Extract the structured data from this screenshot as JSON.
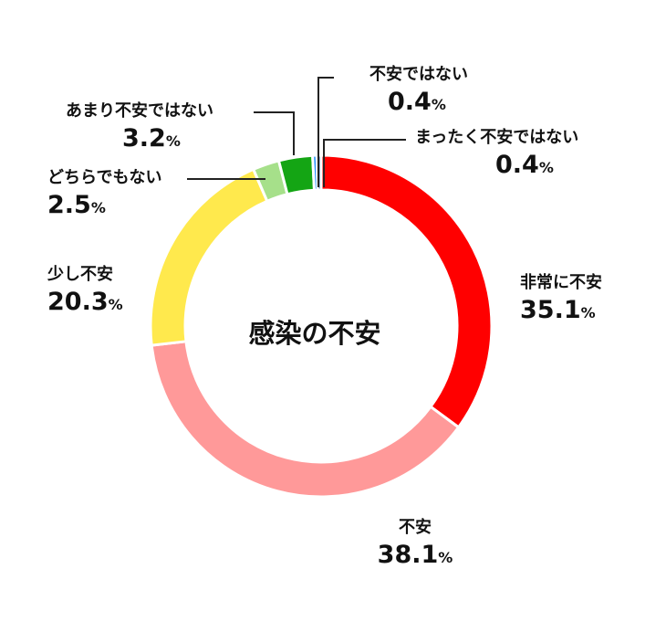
{
  "chart_data": {
    "type": "pie",
    "title": "感染の不安",
    "unit": "%",
    "categories": [
      "非常に不安",
      "不安",
      "少し不安",
      "どちらでもない",
      "あまり不安ではない",
      "不安ではない",
      "まったく不安ではない"
    ],
    "values": [
      35.1,
      38.1,
      20.3,
      2.5,
      3.2,
      0.4,
      0.4
    ],
    "value_labels": [
      "35.1",
      "38.1",
      "20.3",
      "2.5",
      "3.2",
      "0.4",
      "0.4"
    ],
    "colors": [
      "#ff0000",
      "#ff9999",
      "#ffe94d",
      "#a6e08a",
      "#14a514",
      "#1e90ff",
      "#1f5fa8"
    ],
    "donut": true,
    "start_angle": "top",
    "direction": "clockwise"
  }
}
